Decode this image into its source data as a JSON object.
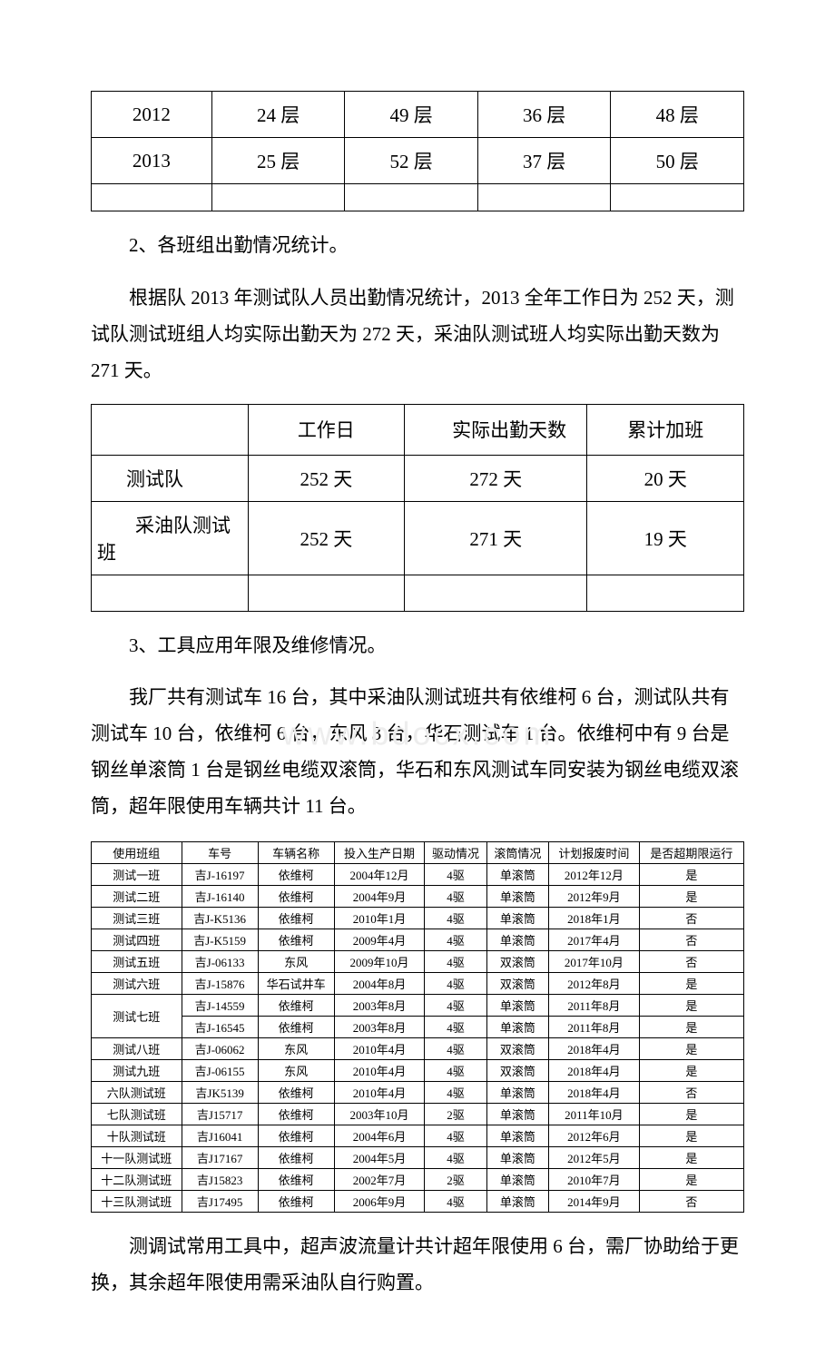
{
  "table1": {
    "rows": [
      [
        "2012",
        "24 层",
        "49 层",
        "36 层",
        "48 层"
      ],
      [
        "2013",
        "25 层",
        "52 层",
        "37 层",
        "50 层"
      ]
    ]
  },
  "section2": {
    "heading": "2、各班组出勤情况统计。",
    "paragraph": "根据队 2013 年测试队人员出勤情况统计，2013 全年工作日为 252 天，测试队测试班组人均实际出勤天为 272 天，采油队测试班人均实际出勤天数为 271 天。"
  },
  "table2": {
    "headers": [
      "",
      "工作日",
      "实际出勤天数",
      "累计加班"
    ],
    "rows": [
      [
        "测试队",
        "252 天",
        "272 天",
        "20 天"
      ],
      [
        "采油队测试班",
        "252 天",
        "271 天",
        "19 天"
      ]
    ]
  },
  "section3": {
    "heading": "3、工具应用年限及维修情况。",
    "paragraph": "我厂共有测试车 16 台，其中采油队测试班共有依维柯 6 台，测试队共有测试车 10 台，依维柯 6 台，东风 3 台，华石测试车 1 台。依维柯中有 9 台是钢丝单滚筒 1 台是钢丝电缆双滚筒，华石和东风测试车同安装为钢丝电缆双滚筒，超年限使用车辆共计 11 台。"
  },
  "watermark": "www.bdocx.com",
  "table3": {
    "headers": [
      "使用班组",
      "车号",
      "车辆名称",
      "投入生产日期",
      "驱动情况",
      "滚筒情况",
      "计划报废时间",
      "是否超期限运行"
    ],
    "rows": [
      {
        "group": "测试一班",
        "plate": "吉J-16197",
        "name": "依维柯",
        "date": "2004年12月",
        "drive": "4驱",
        "drum": "单滚筒",
        "scrap": "2012年12月",
        "over": "是"
      },
      {
        "group": "测试二班",
        "plate": "吉J-16140",
        "name": "依维柯",
        "date": "2004年9月",
        "drive": "4驱",
        "drum": "单滚筒",
        "scrap": "2012年9月",
        "over": "是"
      },
      {
        "group": "测试三班",
        "plate": "吉J-K5136",
        "name": "依维柯",
        "date": "2010年1月",
        "drive": "4驱",
        "drum": "单滚筒",
        "scrap": "2018年1月",
        "over": "否"
      },
      {
        "group": "测试四班",
        "plate": "吉J-K5159",
        "name": "依维柯",
        "date": "2009年4月",
        "drive": "4驱",
        "drum": "单滚筒",
        "scrap": "2017年4月",
        "over": "否"
      },
      {
        "group": "测试五班",
        "plate": "吉J-06133",
        "name": "东风",
        "date": "2009年10月",
        "drive": "4驱",
        "drum": "双滚筒",
        "scrap": "2017年10月",
        "over": "否"
      },
      {
        "group": "测试六班",
        "plate": "吉J-15876",
        "name": "华石试井车",
        "date": "2004年8月",
        "drive": "4驱",
        "drum": "双滚筒",
        "scrap": "2012年8月",
        "over": "是"
      },
      {
        "group": "测试七班",
        "plate": "吉J-14559",
        "name": "依维柯",
        "date": "2003年8月",
        "drive": "4驱",
        "drum": "单滚筒",
        "scrap": "2011年8月",
        "over": "是",
        "rowspan": 2
      },
      {
        "group": "",
        "plate": "吉J-16545",
        "name": "依维柯",
        "date": "2003年8月",
        "drive": "4驱",
        "drum": "单滚筒",
        "scrap": "2011年8月",
        "over": "是",
        "skip": true
      },
      {
        "group": "测试八班",
        "plate": "吉J-06062",
        "name": "东风",
        "date": "2010年4月",
        "drive": "4驱",
        "drum": "双滚筒",
        "scrap": "2018年4月",
        "over": "是"
      },
      {
        "group": "测试九班",
        "plate": "吉J-06155",
        "name": "东风",
        "date": "2010年4月",
        "drive": "4驱",
        "drum": "双滚筒",
        "scrap": "2018年4月",
        "over": "是"
      },
      {
        "group": "六队测试班",
        "plate": "吉JK5139",
        "name": "依维柯",
        "date": "2010年4月",
        "drive": "4驱",
        "drum": "单滚筒",
        "scrap": "2018年4月",
        "over": "否"
      },
      {
        "group": "七队测试班",
        "plate": "吉J15717",
        "name": "依维柯",
        "date": "2003年10月",
        "drive": "2驱",
        "drum": "单滚筒",
        "scrap": "2011年10月",
        "over": "是"
      },
      {
        "group": "十队测试班",
        "plate": "吉J16041",
        "name": "依维柯",
        "date": "2004年6月",
        "drive": "4驱",
        "drum": "单滚筒",
        "scrap": "2012年6月",
        "over": "是"
      },
      {
        "group": "十一队测试班",
        "plate": "吉J17167",
        "name": "依维柯",
        "date": "2004年5月",
        "drive": "4驱",
        "drum": "单滚筒",
        "scrap": "2012年5月",
        "over": "是"
      },
      {
        "group": "十二队测试班",
        "plate": "吉J15823",
        "name": "依维柯",
        "date": "2002年7月",
        "drive": "2驱",
        "drum": "单滚筒",
        "scrap": "2010年7月",
        "over": "是"
      },
      {
        "group": "十三队测试班",
        "plate": "吉J17495",
        "name": "依维柯",
        "date": "2006年9月",
        "drive": "4驱",
        "drum": "单滚筒",
        "scrap": "2014年9月",
        "over": "否"
      }
    ]
  },
  "section4": {
    "paragraph": "测调试常用工具中，超声波流量计共计超年限使用 6 台，需厂协助给于更换，其余超年限使用需采油队自行购置。"
  }
}
